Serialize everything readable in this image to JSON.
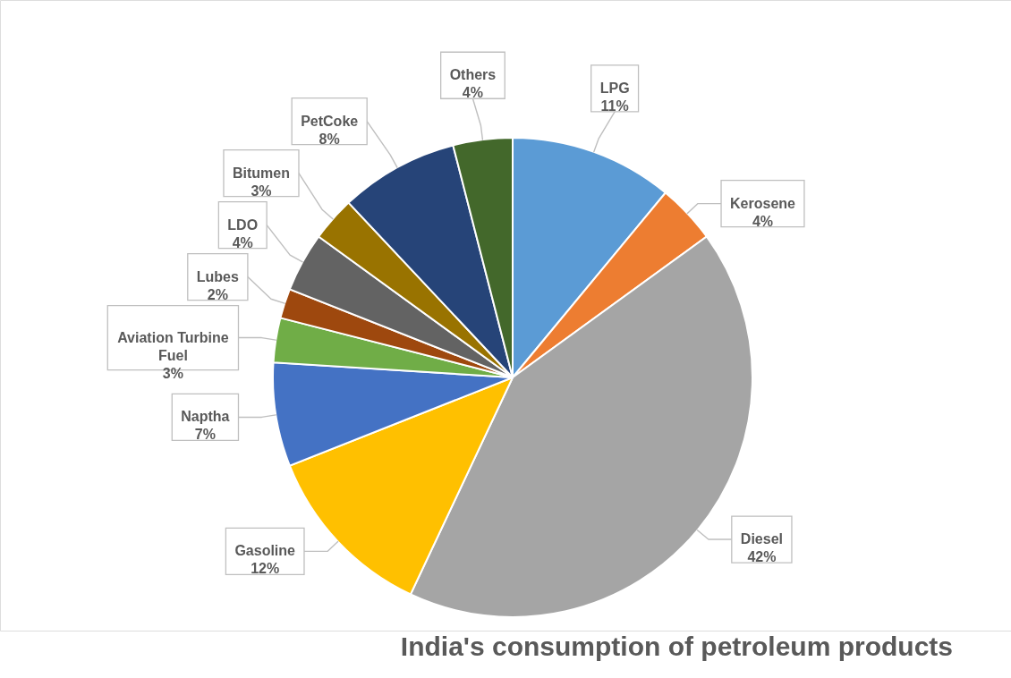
{
  "chart_data": {
    "type": "pie",
    "title": "India's consumption of petroleum products",
    "categories": [
      "LPG",
      "Kerosene",
      "Diesel",
      "Gasoline",
      "Naptha",
      "Aviation Turbine Fuel",
      "Lubes",
      "LDO",
      "Bitumen",
      "PetCoke",
      "Others"
    ],
    "values": [
      11,
      4,
      42,
      12,
      7,
      3,
      2,
      4,
      3,
      8,
      4
    ],
    "value_labels": [
      "11%",
      "4%",
      "42%",
      "12%",
      "7%",
      "3%",
      "2%",
      "4%",
      "3%",
      "8%",
      "4%"
    ],
    "colors": [
      "#5b9bd5",
      "#ed7d31",
      "#a5a5a5",
      "#ffc000",
      "#4472c4",
      "#70ad47",
      "#9e480e",
      "#636363",
      "#997300",
      "#264478",
      "#43682b"
    ],
    "legend": false
  }
}
